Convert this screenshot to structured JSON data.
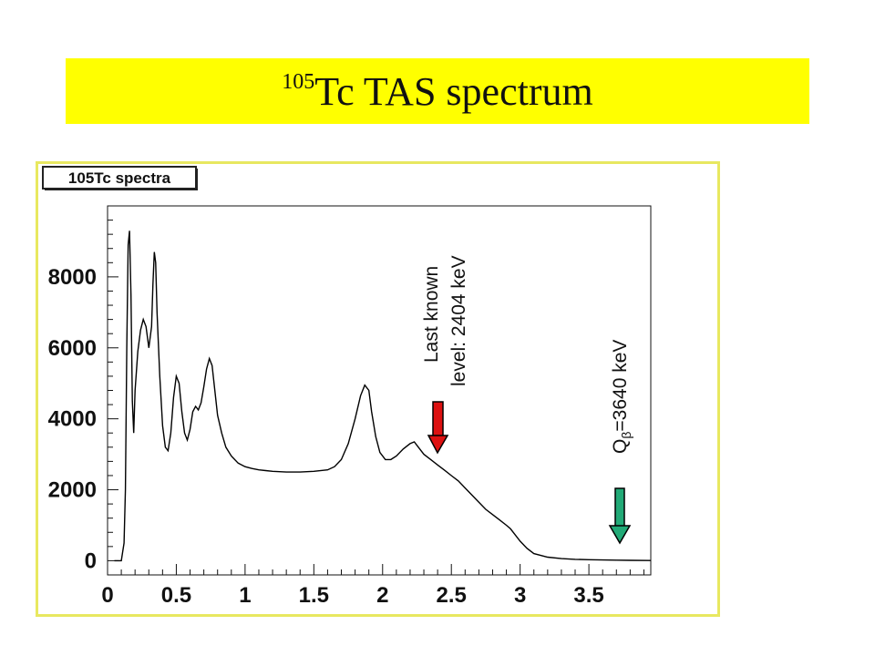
{
  "title": {
    "superscript": "105",
    "text": "Tc TAS spectrum"
  },
  "colors": {
    "banner": "#ffff00",
    "frame": "#e8e860",
    "arrow_red": "#dd1111",
    "arrow_green": "#22aa77"
  },
  "chart_data": {
    "type": "line",
    "title": "105Tc spectra",
    "xlabel": "",
    "ylabel": "",
    "xlim": [
      0,
      3.95
    ],
    "ylim": [
      -400,
      10000
    ],
    "x_ticks": [
      "0",
      "0.5",
      "1",
      "1.5",
      "2",
      "2.5",
      "3",
      "3.5"
    ],
    "y_ticks": [
      "0",
      "2000",
      "4000",
      "6000",
      "8000"
    ],
    "grid": false,
    "series": [
      {
        "name": "",
        "points": [
          [
            0.05,
            0
          ],
          [
            0.1,
            0
          ],
          [
            0.12,
            500
          ],
          [
            0.13,
            2000
          ],
          [
            0.14,
            6000
          ],
          [
            0.15,
            8900
          ],
          [
            0.16,
            9300
          ],
          [
            0.17,
            7500
          ],
          [
            0.18,
            4500
          ],
          [
            0.19,
            3600
          ],
          [
            0.2,
            4800
          ],
          [
            0.22,
            5900
          ],
          [
            0.24,
            6500
          ],
          [
            0.26,
            6800
          ],
          [
            0.28,
            6600
          ],
          [
            0.3,
            6000
          ],
          [
            0.32,
            6600
          ],
          [
            0.33,
            7800
          ],
          [
            0.34,
            8700
          ],
          [
            0.35,
            8400
          ],
          [
            0.36,
            7000
          ],
          [
            0.38,
            5200
          ],
          [
            0.4,
            3800
          ],
          [
            0.42,
            3200
          ],
          [
            0.44,
            3100
          ],
          [
            0.46,
            3600
          ],
          [
            0.48,
            4600
          ],
          [
            0.5,
            5200
          ],
          [
            0.52,
            5000
          ],
          [
            0.54,
            4200
          ],
          [
            0.56,
            3600
          ],
          [
            0.58,
            3400
          ],
          [
            0.6,
            3700
          ],
          [
            0.62,
            4200
          ],
          [
            0.64,
            4350
          ],
          [
            0.66,
            4250
          ],
          [
            0.68,
            4450
          ],
          [
            0.7,
            4900
          ],
          [
            0.72,
            5400
          ],
          [
            0.74,
            5700
          ],
          [
            0.76,
            5500
          ],
          [
            0.78,
            4800
          ],
          [
            0.8,
            4100
          ],
          [
            0.83,
            3600
          ],
          [
            0.86,
            3200
          ],
          [
            0.9,
            2950
          ],
          [
            0.95,
            2750
          ],
          [
            1.0,
            2650
          ],
          [
            1.05,
            2600
          ],
          [
            1.1,
            2560
          ],
          [
            1.15,
            2540
          ],
          [
            1.2,
            2520
          ],
          [
            1.3,
            2500
          ],
          [
            1.4,
            2500
          ],
          [
            1.5,
            2520
          ],
          [
            1.6,
            2560
          ],
          [
            1.65,
            2650
          ],
          [
            1.7,
            2850
          ],
          [
            1.75,
            3300
          ],
          [
            1.8,
            4000
          ],
          [
            1.84,
            4650
          ],
          [
            1.87,
            4950
          ],
          [
            1.9,
            4800
          ],
          [
            1.92,
            4200
          ],
          [
            1.95,
            3500
          ],
          [
            1.98,
            3050
          ],
          [
            2.02,
            2850
          ],
          [
            2.06,
            2850
          ],
          [
            2.1,
            2950
          ],
          [
            2.15,
            3150
          ],
          [
            2.2,
            3300
          ],
          [
            2.23,
            3350
          ],
          [
            2.26,
            3200
          ],
          [
            2.3,
            3000
          ],
          [
            2.35,
            2850
          ],
          [
            2.4,
            2700
          ],
          [
            2.45,
            2550
          ],
          [
            2.5,
            2400
          ],
          [
            2.55,
            2250
          ],
          [
            2.6,
            2050
          ],
          [
            2.65,
            1850
          ],
          [
            2.7,
            1650
          ],
          [
            2.75,
            1450
          ],
          [
            2.8,
            1300
          ],
          [
            2.85,
            1150
          ],
          [
            2.9,
            1000
          ],
          [
            2.93,
            900
          ],
          [
            2.96,
            750
          ],
          [
            3.0,
            550
          ],
          [
            3.05,
            350
          ],
          [
            3.1,
            200
          ],
          [
            3.2,
            100
          ],
          [
            3.3,
            60
          ],
          [
            3.4,
            40
          ],
          [
            3.5,
            30
          ],
          [
            3.6,
            20
          ],
          [
            3.7,
            15
          ],
          [
            3.8,
            10
          ],
          [
            3.95,
            5
          ]
        ]
      }
    ],
    "annotations": [
      {
        "lines": [
          "Last known",
          "level: 2404 keV"
        ]
      },
      {
        "q_letter": "Q",
        "q_sub": "β",
        "q_rest": "=3640 keV"
      }
    ],
    "arrows": [
      {
        "label": "last-known-level",
        "x": 2.4,
        "color": "red"
      },
      {
        "label": "q-beta",
        "x": 3.71,
        "color": "green"
      }
    ]
  }
}
